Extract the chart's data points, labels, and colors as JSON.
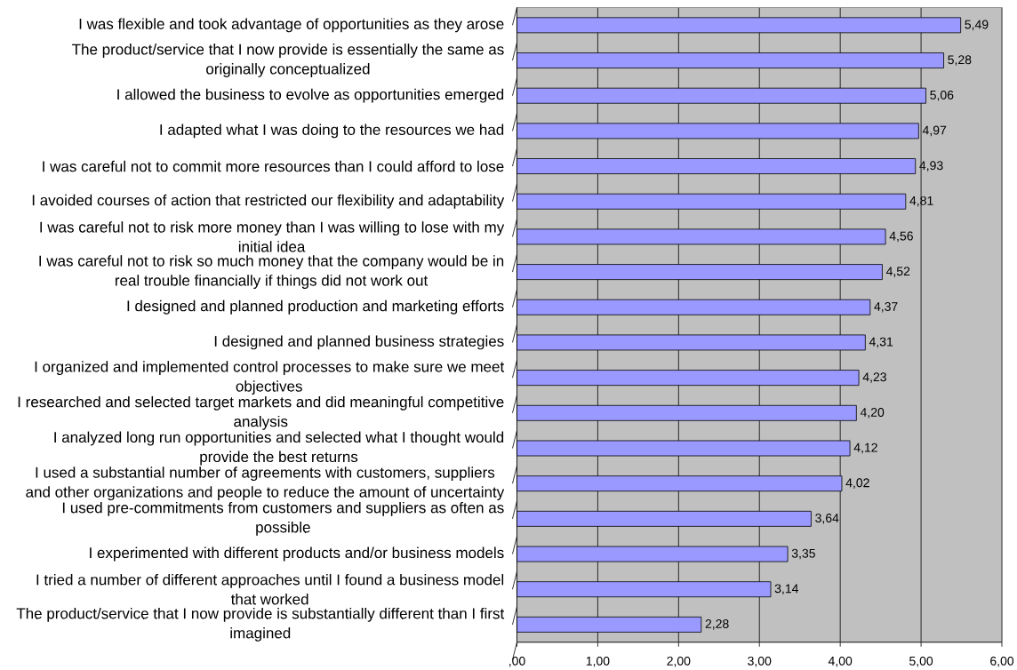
{
  "chart_data": {
    "type": "bar",
    "orientation": "horizontal",
    "categories": [
      "I was flexible and took advantage of opportunities as they arose",
      "The product/service that I now provide is essentially the same as originally conceptualized",
      "I allowed the business to evolve as opportunities emerged",
      "I adapted what I was doing to the resources we had",
      "I was careful not to commit more resources than I could afford to lose",
      "I avoided courses of action that restricted our flexibility and adaptability",
      "I was careful not to risk more money than I was willing to lose with my initial idea",
      "I was careful not to risk so much money that the company would be in real trouble financially if things did not work out",
      "I designed and planned production and marketing efforts",
      "I designed and planned business strategies",
      "I organized and implemented control processes to make sure we meet objectives",
      "I researched and selected target markets and did meaningful competitive analysis",
      "I analyzed long run opportunities and selected what I thought would provide the best returns",
      "I used a substantial number of agreements with customers, suppliers and other organizations and people to reduce the amount of uncertainty",
      "I used pre-commitments from customers and suppliers as often as possible",
      "I experimented with different products and/or business models",
      "I tried a number of different approaches until I found a business model that worked",
      "The product/service that I now provide is substantially different than I first imagined"
    ],
    "values": [
      5.49,
      5.28,
      5.06,
      4.97,
      4.93,
      4.81,
      4.56,
      4.52,
      4.37,
      4.31,
      4.23,
      4.2,
      4.12,
      4.02,
      3.64,
      3.35,
      3.14,
      2.28
    ],
    "value_labels": [
      "5,49",
      "5,28",
      "5,06",
      "4,97",
      "4,93",
      "4,81",
      "4,56",
      "4,52",
      "4,37",
      "4,31",
      "4,23",
      "4,20",
      "4,12",
      "4,02",
      "3,64",
      "3,35",
      "3,14",
      "2,28"
    ],
    "color": "#9999ff",
    "xlim": [
      0,
      6
    ],
    "xticks": [
      {
        "value": 0,
        "label": ",00"
      },
      {
        "value": 1,
        "label": "1,00"
      },
      {
        "value": 2,
        "label": "2,00"
      },
      {
        "value": 3,
        "label": "3,00"
      },
      {
        "value": 4,
        "label": "4,00"
      },
      {
        "value": 5,
        "label": "5,00"
      },
      {
        "value": 6,
        "label": "6,00"
      }
    ],
    "grid": "x"
  }
}
